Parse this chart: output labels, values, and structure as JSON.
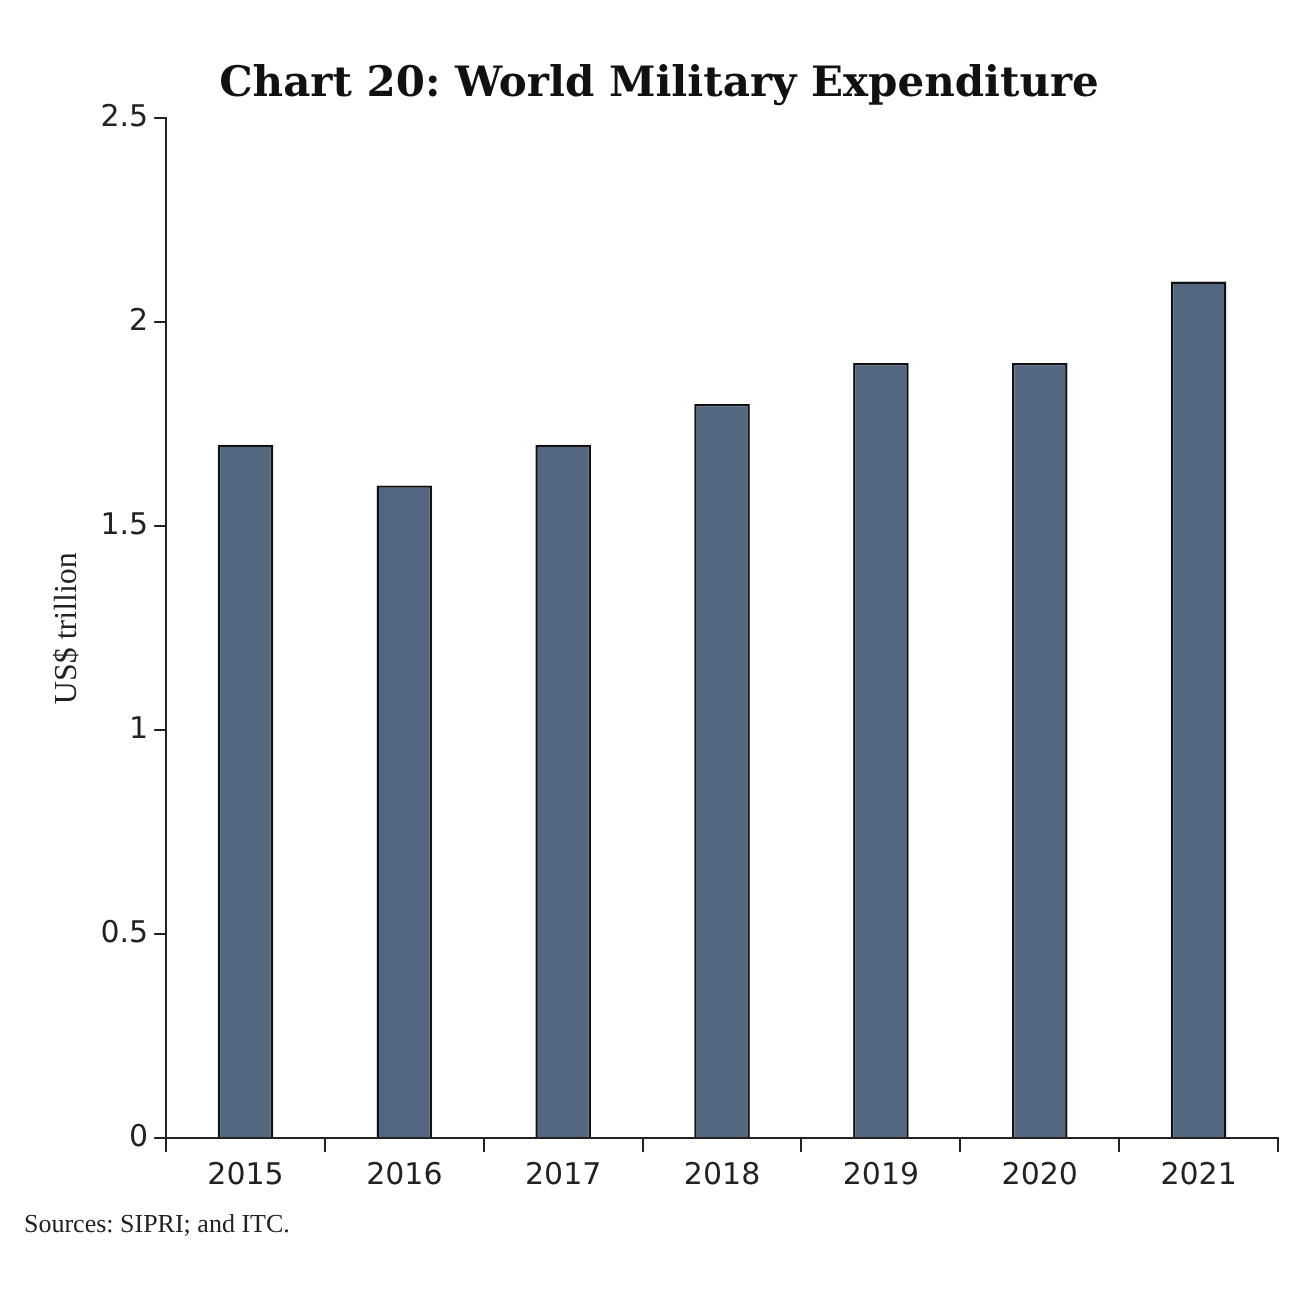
{
  "chart_data": {
    "type": "bar",
    "title": "Chart 20: World Military Expenditure",
    "ylabel": "US$ trillion",
    "categories": [
      "2015",
      "2016",
      "2017",
      "2018",
      "2019",
      "2020",
      "2021"
    ],
    "values": [
      1.7,
      1.6,
      1.7,
      1.8,
      1.9,
      1.9,
      2.1
    ],
    "color": "#536880",
    "ylim": [
      0,
      2.5
    ],
    "yticks": [
      0,
      0.5,
      1,
      1.5,
      2,
      2.5
    ],
    "grid": false,
    "legend": false,
    "annotations": [
      "Sources: SIPRI; and ITC."
    ]
  }
}
